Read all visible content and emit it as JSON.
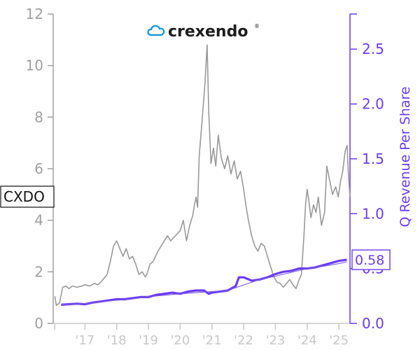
{
  "chart_data": {
    "type": "line",
    "ticker": "CXDO",
    "logo_text": "crexendo",
    "colors": {
      "price": "#999999",
      "revenue": "#6a3cf0",
      "revenue_fit": "#7b58e8",
      "left_axis": "#a0a0a0",
      "x_axis": "#c8c8c8"
    },
    "x_tick_labels": [
      "'17",
      "'18",
      "'19",
      "'20",
      "'21",
      "'22",
      "'23",
      "'24",
      "'25"
    ],
    "x_range": [
      2016.0,
      2025.35
    ],
    "left_axis": {
      "ticks": [
        "0",
        "2",
        "4",
        "6",
        "8",
        "10",
        "12"
      ],
      "range": [
        0,
        12
      ]
    },
    "right_axis": {
      "label": "Q Revenue Per Share",
      "ticks": [
        "0.0",
        "0.5",
        "1.0",
        "1.5",
        "2.0",
        "2.5"
      ],
      "range": [
        0,
        2.82
      ]
    },
    "last_value_label": "0.58",
    "series": [
      {
        "axis": "left",
        "points": [
          [
            2016.05,
            1.05
          ],
          [
            2016.1,
            0.7
          ],
          [
            2016.2,
            0.8
          ],
          [
            2016.3,
            1.4
          ],
          [
            2016.4,
            1.45
          ],
          [
            2016.5,
            1.35
          ],
          [
            2016.6,
            1.45
          ],
          [
            2016.75,
            1.4
          ],
          [
            2016.9,
            1.45
          ],
          [
            2017.0,
            1.5
          ],
          [
            2017.15,
            1.45
          ],
          [
            2017.3,
            1.55
          ],
          [
            2017.4,
            1.5
          ],
          [
            2017.5,
            1.6
          ],
          [
            2017.6,
            1.75
          ],
          [
            2017.7,
            1.9
          ],
          [
            2017.8,
            2.4
          ],
          [
            2017.9,
            3.0
          ],
          [
            2018.0,
            3.2
          ],
          [
            2018.1,
            2.9
          ],
          [
            2018.2,
            2.6
          ],
          [
            2018.3,
            2.9
          ],
          [
            2018.4,
            2.5
          ],
          [
            2018.5,
            2.6
          ],
          [
            2018.6,
            2.3
          ],
          [
            2018.7,
            1.9
          ],
          [
            2018.8,
            2.0
          ],
          [
            2018.9,
            1.8
          ],
          [
            2018.95,
            1.9
          ],
          [
            2019.05,
            2.3
          ],
          [
            2019.15,
            2.4
          ],
          [
            2019.3,
            2.8
          ],
          [
            2019.45,
            3.1
          ],
          [
            2019.6,
            3.4
          ],
          [
            2019.7,
            3.2
          ],
          [
            2019.85,
            3.4
          ],
          [
            2020.0,
            3.6
          ],
          [
            2020.1,
            4.0
          ],
          [
            2020.2,
            3.2
          ],
          [
            2020.3,
            3.8
          ],
          [
            2020.4,
            4.2
          ],
          [
            2020.45,
            4.6
          ],
          [
            2020.5,
            4.9
          ],
          [
            2020.55,
            4.5
          ],
          [
            2020.6,
            6.5
          ],
          [
            2020.7,
            8.0
          ],
          [
            2020.78,
            9.3
          ],
          [
            2020.85,
            10.8
          ],
          [
            2020.9,
            8.2
          ],
          [
            2020.97,
            6.2
          ],
          [
            2021.05,
            6.8
          ],
          [
            2021.12,
            6.1
          ],
          [
            2021.2,
            7.3
          ],
          [
            2021.3,
            6.4
          ],
          [
            2021.4,
            6.0
          ],
          [
            2021.5,
            6.5
          ],
          [
            2021.6,
            5.8
          ],
          [
            2021.7,
            6.3
          ],
          [
            2021.8,
            5.6
          ],
          [
            2021.9,
            5.9
          ],
          [
            2022.0,
            5.2
          ],
          [
            2022.08,
            4.5
          ],
          [
            2022.15,
            4.0
          ],
          [
            2022.25,
            3.4
          ],
          [
            2022.35,
            3.0
          ],
          [
            2022.45,
            2.8
          ],
          [
            2022.55,
            3.1
          ],
          [
            2022.65,
            3.0
          ],
          [
            2022.75,
            2.6
          ],
          [
            2022.85,
            2.2
          ],
          [
            2022.95,
            1.8
          ],
          [
            2023.05,
            1.6
          ],
          [
            2023.15,
            1.55
          ],
          [
            2023.25,
            1.4
          ],
          [
            2023.35,
            1.55
          ],
          [
            2023.45,
            1.7
          ],
          [
            2023.55,
            1.5
          ],
          [
            2023.65,
            1.35
          ],
          [
            2023.75,
            1.7
          ],
          [
            2023.82,
            1.9
          ],
          [
            2023.9,
            3.4
          ],
          [
            2023.95,
            4.6
          ],
          [
            2024.0,
            5.2
          ],
          [
            2024.05,
            4.8
          ],
          [
            2024.12,
            4.1
          ],
          [
            2024.2,
            4.6
          ],
          [
            2024.28,
            4.3
          ],
          [
            2024.35,
            4.9
          ],
          [
            2024.45,
            3.8
          ],
          [
            2024.55,
            4.3
          ],
          [
            2024.62,
            6.1
          ],
          [
            2024.7,
            5.6
          ],
          [
            2024.8,
            5.0
          ],
          [
            2024.9,
            5.3
          ],
          [
            2024.98,
            4.9
          ],
          [
            2025.05,
            5.5
          ],
          [
            2025.12,
            5.9
          ],
          [
            2025.2,
            6.7
          ],
          [
            2025.26,
            6.9
          ],
          [
            2025.3,
            5.8
          ],
          [
            2025.35,
            4.9
          ]
        ]
      },
      {
        "axis": "right",
        "points": [
          [
            2016.25,
            0.17
          ],
          [
            2016.5,
            0.175
          ],
          [
            2016.75,
            0.18
          ],
          [
            2017.0,
            0.175
          ],
          [
            2017.25,
            0.19
          ],
          [
            2017.5,
            0.2
          ],
          [
            2017.75,
            0.21
          ],
          [
            2018.0,
            0.22
          ],
          [
            2018.25,
            0.22
          ],
          [
            2018.5,
            0.23
          ],
          [
            2018.75,
            0.24
          ],
          [
            2019.0,
            0.24
          ],
          [
            2019.25,
            0.26
          ],
          [
            2019.5,
            0.27
          ],
          [
            2019.75,
            0.28
          ],
          [
            2020.0,
            0.27
          ],
          [
            2020.25,
            0.29
          ],
          [
            2020.5,
            0.3
          ],
          [
            2020.75,
            0.3
          ],
          [
            2020.9,
            0.27
          ],
          [
            2021.0,
            0.28
          ],
          [
            2021.25,
            0.29
          ],
          [
            2021.5,
            0.3
          ],
          [
            2021.75,
            0.34
          ],
          [
            2021.85,
            0.42
          ],
          [
            2022.0,
            0.42
          ],
          [
            2022.25,
            0.39
          ],
          [
            2022.5,
            0.4
          ],
          [
            2022.75,
            0.42
          ],
          [
            2023.0,
            0.45
          ],
          [
            2023.25,
            0.47
          ],
          [
            2023.5,
            0.48
          ],
          [
            2023.75,
            0.5
          ],
          [
            2024.0,
            0.5
          ],
          [
            2024.25,
            0.51
          ],
          [
            2024.5,
            0.53
          ],
          [
            2024.75,
            0.55
          ],
          [
            2025.0,
            0.57
          ],
          [
            2025.25,
            0.58
          ]
        ]
      },
      {
        "axis": "right",
        "points": [
          [
            2016.25,
            0.17
          ],
          [
            2017.0,
            0.18
          ],
          [
            2017.75,
            0.205
          ],
          [
            2018.5,
            0.225
          ],
          [
            2019.25,
            0.25
          ],
          [
            2020.0,
            0.27
          ],
          [
            2020.75,
            0.285
          ],
          [
            2021.5,
            0.3
          ],
          [
            2022.0,
            0.35
          ],
          [
            2022.5,
            0.4
          ],
          [
            2023.0,
            0.43
          ],
          [
            2023.5,
            0.465
          ],
          [
            2024.0,
            0.5
          ],
          [
            2024.5,
            0.52
          ],
          [
            2025.0,
            0.545
          ],
          [
            2025.25,
            0.56
          ]
        ]
      }
    ]
  }
}
